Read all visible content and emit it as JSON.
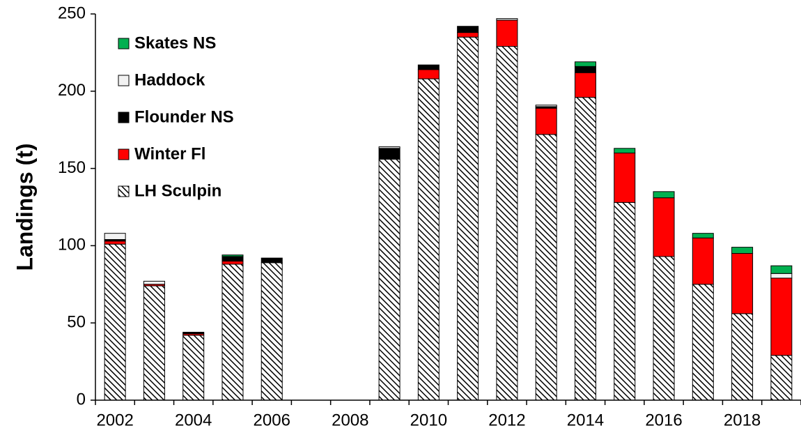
{
  "chart_data": {
    "type": "stacked_bar",
    "y_label": "Landings (t)",
    "categories": [
      "2002",
      null,
      "2004",
      null,
      "2006",
      null,
      "2008",
      null,
      "2010",
      null,
      "2012",
      null,
      "2014",
      null,
      "2016",
      null,
      "2018",
      null
    ],
    "series": [
      {
        "name": "LH Sculpin",
        "color": "#ffffff",
        "hatch": true,
        "values": [
          101,
          74,
          42,
          88,
          89,
          0,
          0,
          156,
          208,
          235,
          229,
          172,
          196,
          128,
          93,
          75,
          56,
          29
        ]
      },
      {
        "name": "Winter Fl",
        "color": "#ff0000",
        "values": [
          2,
          1,
          1,
          2,
          0,
          0,
          0,
          0,
          6,
          3,
          17,
          17,
          16,
          32,
          38,
          30,
          39,
          50
        ]
      },
      {
        "name": "Flounder NS",
        "color": "#000000",
        "values": [
          1,
          0,
          1,
          3,
          3,
          0,
          0,
          7,
          3,
          4,
          0,
          1,
          4,
          0,
          0,
          0,
          0,
          0
        ]
      },
      {
        "name": "Haddock",
        "color": "#f2f2f2",
        "values": [
          4,
          2,
          0,
          0,
          0,
          0,
          0,
          1,
          0,
          0,
          1,
          1,
          0,
          0,
          0,
          0,
          0,
          3
        ]
      },
      {
        "name": "Skates NS",
        "color": "#00b050",
        "values": [
          0,
          0,
          0,
          1,
          0,
          0,
          0,
          0,
          0,
          0,
          0,
          0,
          3,
          3,
          4,
          3,
          4,
          5
        ]
      }
    ],
    "ylim": [
      0,
      250
    ],
    "yticks": [
      0,
      50,
      100,
      150,
      200,
      250
    ],
    "legend": "upper left"
  }
}
